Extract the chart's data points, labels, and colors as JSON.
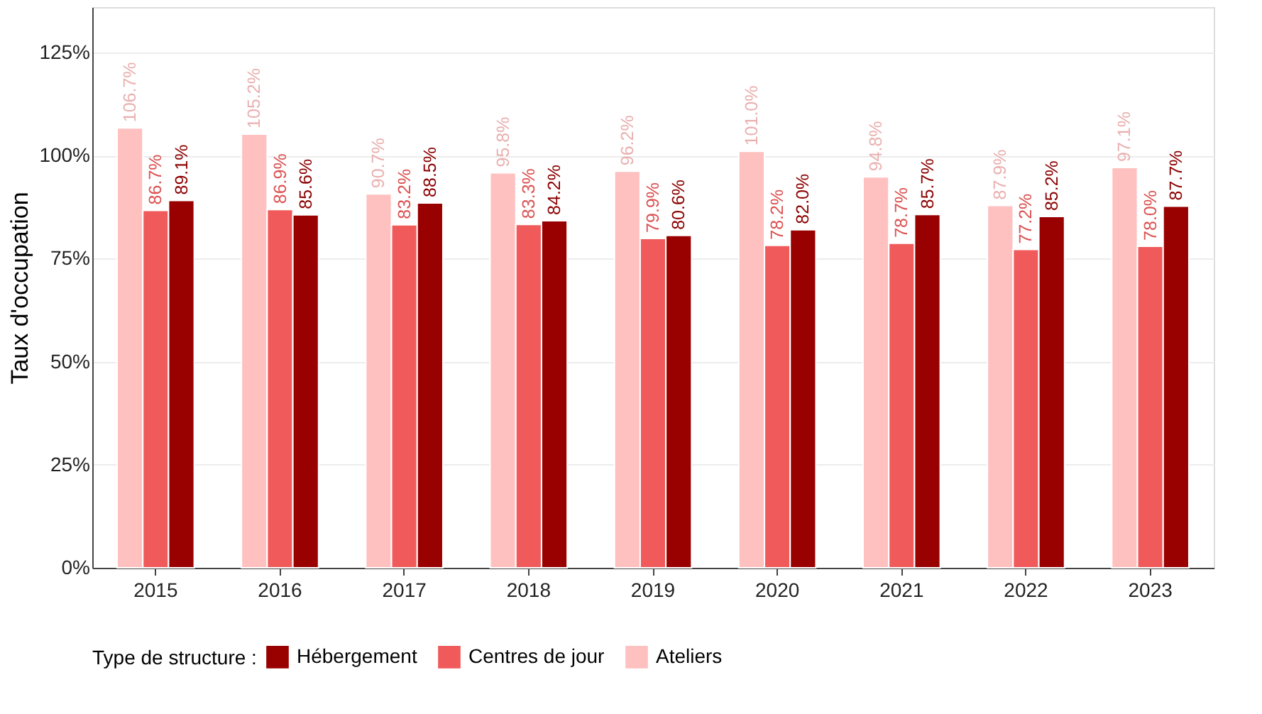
{
  "chart_data": {
    "type": "bar",
    "ylabel": "Taux d'occupation",
    "legend_title": "Type de structure :",
    "legend": "bottom",
    "grid": "y",
    "categories": [
      "2015",
      "2016",
      "2017",
      "2018",
      "2019",
      "2020",
      "2021",
      "2022",
      "2023"
    ],
    "ylim": [
      0,
      136
    ],
    "yticks": [
      {
        "value": 0,
        "label": "0%"
      },
      {
        "value": 25,
        "label": "25%"
      },
      {
        "value": 50,
        "label": "50%"
      },
      {
        "value": 75,
        "label": "75%"
      },
      {
        "value": 100,
        "label": "100%"
      },
      {
        "value": 125,
        "label": "125%"
      }
    ],
    "series": [
      {
        "name": "Ateliers",
        "color": "#ffc0c0",
        "values": [
          106.7,
          105.2,
          90.7,
          95.8,
          96.2,
          101.0,
          94.8,
          87.9,
          97.1
        ],
        "value_labels": [
          "106.7%",
          "105.2%",
          "90.7%",
          "95.8%",
          "96.2%",
          "101.0%",
          "94.8%",
          "87.9%",
          "97.1%"
        ]
      },
      {
        "name": "Centres de jour",
        "color": "#f05a5a",
        "values": [
          86.7,
          86.9,
          83.2,
          83.3,
          79.9,
          78.2,
          78.7,
          77.2,
          78.0
        ],
        "value_labels": [
          "86.7%",
          "86.9%",
          "83.2%",
          "83.3%",
          "79.9%",
          "78.2%",
          "78.7%",
          "77.2%",
          "78.0%"
        ]
      },
      {
        "name": "Hébergement",
        "color": "#990000",
        "values": [
          89.1,
          85.6,
          88.5,
          84.2,
          80.6,
          82.0,
          85.7,
          85.2,
          87.7
        ],
        "value_labels": [
          "89.1%",
          "85.6%",
          "88.5%",
          "84.2%",
          "80.6%",
          "82.0%",
          "85.7%",
          "85.2%",
          "87.7%"
        ]
      }
    ]
  }
}
